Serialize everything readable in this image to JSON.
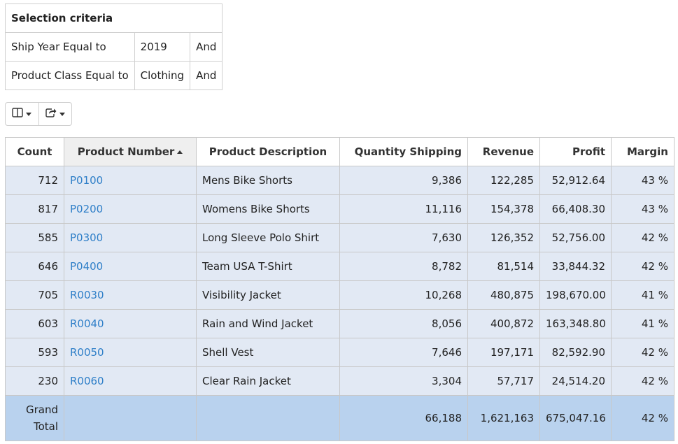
{
  "criteria": {
    "title": "Selection criteria",
    "rows": [
      {
        "field": "Ship Year Equal to",
        "value": "2019",
        "op": "And"
      },
      {
        "field": "Product Class Equal to",
        "value": "Clothing",
        "op": "And"
      }
    ]
  },
  "toolbar": {
    "columns_icon": "columns-icon",
    "export_icon": "share-export-icon"
  },
  "table": {
    "headers": {
      "count": "Count",
      "product_number": "Product Number",
      "product_description": "Product Description",
      "quantity_shipping": "Quantity Shipping",
      "revenue": "Revenue",
      "profit": "Profit",
      "margin": "Margin"
    },
    "sort": {
      "column": "product_number",
      "direction": "ascending"
    },
    "rows": [
      {
        "count": "712",
        "number": "P0100",
        "description": "Mens Bike Shorts",
        "qty": "9,386",
        "revenue": "122,285",
        "profit": "52,912.64",
        "margin": "43 %"
      },
      {
        "count": "817",
        "number": "P0200",
        "description": "Womens Bike Shorts",
        "qty": "11,116",
        "revenue": "154,378",
        "profit": "66,408.30",
        "margin": "43 %"
      },
      {
        "count": "585",
        "number": "P0300",
        "description": "Long Sleeve Polo Shirt",
        "qty": "7,630",
        "revenue": "126,352",
        "profit": "52,756.00",
        "margin": "42 %"
      },
      {
        "count": "646",
        "number": "P0400",
        "description": "Team USA T-Shirt",
        "qty": "8,782",
        "revenue": "81,514",
        "profit": "33,844.32",
        "margin": "42 %"
      },
      {
        "count": "705",
        "number": "R0030",
        "description": "Visibility Jacket",
        "qty": "10,268",
        "revenue": "480,875",
        "profit": "198,670.00",
        "margin": "41 %"
      },
      {
        "count": "603",
        "number": "R0040",
        "description": "Rain and Wind Jacket",
        "qty": "8,056",
        "revenue": "400,872",
        "profit": "163,348.80",
        "margin": "41 %"
      },
      {
        "count": "593",
        "number": "R0050",
        "description": "Shell Vest",
        "qty": "7,646",
        "revenue": "197,171",
        "profit": "82,592.90",
        "margin": "42 %"
      },
      {
        "count": "230",
        "number": "R0060",
        "description": "Clear Rain Jacket",
        "qty": "3,304",
        "revenue": "57,717",
        "profit": "24,514.20",
        "margin": "42 %"
      }
    ],
    "totals": {
      "label_line1": "Grand",
      "label_line2": "Total",
      "qty": "66,188",
      "revenue": "1,621,163",
      "profit": "675,047.16",
      "margin": "42 %"
    }
  },
  "colors": {
    "row_bg": "#e2e9f4",
    "total_bg": "#b9d2ee",
    "link": "#2f7fc8"
  }
}
